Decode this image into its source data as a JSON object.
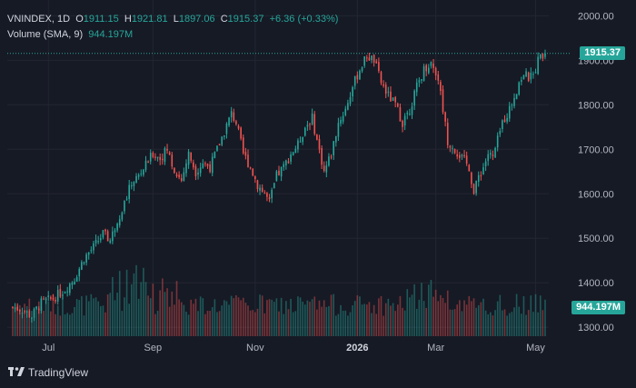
{
  "legend": {
    "symbol": "VNINDEX",
    "interval": "1D",
    "open_label": "O",
    "open": "1911.15",
    "high_label": "H",
    "high": "1921.81",
    "low_label": "L",
    "low": "1897.06",
    "close_label": "C",
    "close": "1915.37",
    "change": "+6.36 (+0.33%)",
    "volume_label": "Volume (SMA, 9)",
    "volume_value": "944.197M"
  },
  "price_tag": "1915.37",
  "volume_tag": "944.197M",
  "brand": "TradingView",
  "colors": {
    "up": "#26a69a",
    "down": "#ef5350",
    "background": "#161a25",
    "grid": "#232632",
    "text": "#b2b5be"
  },
  "chart_data": {
    "type": "candlestick",
    "title": "VNINDEX, 1D",
    "y_ticks": [
      "2000.00",
      "1900.00",
      "1800.00",
      "1700.00",
      "1600.00",
      "1500.00",
      "1400.00",
      "1300.00"
    ],
    "ylim": [
      1280,
      2015
    ],
    "x_ticks": [
      {
        "label": "Jul",
        "day": 15
      },
      {
        "label": "Sep",
        "day": 59
      },
      {
        "label": "Nov",
        "day": 102
      },
      {
        "label": "2026",
        "day": 145
      },
      {
        "label": "Mar",
        "day": 178
      },
      {
        "label": "May",
        "day": 220
      }
    ],
    "x_range": [
      0,
      224
    ],
    "last_price": 1915.37,
    "close_path": [
      [
        0,
        1345
      ],
      [
        4,
        1340
      ],
      [
        8,
        1325
      ],
      [
        12,
        1355
      ],
      [
        17,
        1365
      ],
      [
        22,
        1385
      ],
      [
        26,
        1410
      ],
      [
        30,
        1455
      ],
      [
        34,
        1480
      ],
      [
        38,
        1510
      ],
      [
        41,
        1495
      ],
      [
        44,
        1540
      ],
      [
        47,
        1580
      ],
      [
        50,
        1625
      ],
      [
        53,
        1640
      ],
      [
        56,
        1665
      ],
      [
        59,
        1690
      ],
      [
        62,
        1680
      ],
      [
        65,
        1700
      ],
      [
        68,
        1650
      ],
      [
        71,
        1630
      ],
      [
        74,
        1690
      ],
      [
        77,
        1650
      ],
      [
        80,
        1670
      ],
      [
        83,
        1660
      ],
      [
        86,
        1700
      ],
      [
        89,
        1740
      ],
      [
        92,
        1780
      ],
      [
        94,
        1760
      ],
      [
        97,
        1690
      ],
      [
        100,
        1660
      ],
      [
        103,
        1620
      ],
      [
        106,
        1600
      ],
      [
        108,
        1580
      ],
      [
        111,
        1640
      ],
      [
        114,
        1660
      ],
      [
        117,
        1690
      ],
      [
        120,
        1710
      ],
      [
        123,
        1750
      ],
      [
        126,
        1770
      ],
      [
        128,
        1720
      ],
      [
        131,
        1650
      ],
      [
        134,
        1690
      ],
      [
        137,
        1760
      ],
      [
        140,
        1790
      ],
      [
        143,
        1840
      ],
      [
        146,
        1880
      ],
      [
        149,
        1910
      ],
      [
        152,
        1900
      ],
      [
        155,
        1850
      ],
      [
        158,
        1820
      ],
      [
        161,
        1800
      ],
      [
        164,
        1760
      ],
      [
        167,
        1790
      ],
      [
        170,
        1840
      ],
      [
        173,
        1880
      ],
      [
        176,
        1895
      ],
      [
        179,
        1860
      ],
      [
        181,
        1790
      ],
      [
        183,
        1720
      ],
      [
        186,
        1700
      ],
      [
        189,
        1680
      ],
      [
        192,
        1660
      ],
      [
        194,
        1600
      ],
      [
        196,
        1640
      ],
      [
        198,
        1660
      ],
      [
        200,
        1690
      ],
      [
        202,
        1680
      ],
      [
        204,
        1720
      ],
      [
        206,
        1760
      ],
      [
        209,
        1790
      ],
      [
        211,
        1820
      ],
      [
        213,
        1850
      ],
      [
        215,
        1870
      ],
      [
        217,
        1860
      ],
      [
        219,
        1865
      ],
      [
        221,
        1900
      ],
      [
        223,
        1915
      ]
    ]
  }
}
